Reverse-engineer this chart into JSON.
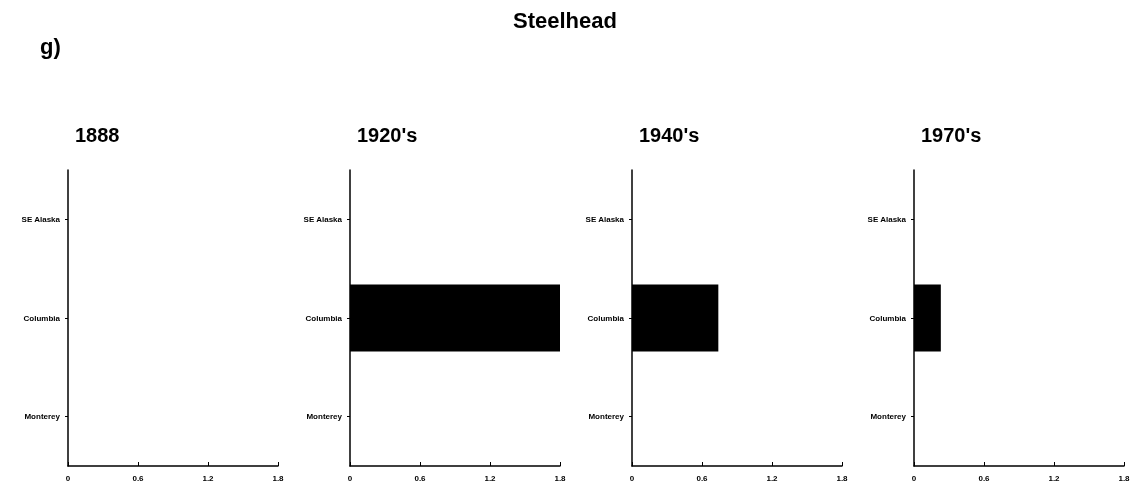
{
  "chart_data": [
    {
      "type": "bar",
      "orientation": "horizontal",
      "title": "1888",
      "annotations": [
        "g)",
        "Steelhead"
      ],
      "categories": [
        "SE Alaska",
        "Columbia",
        "Monterey"
      ],
      "values": [
        0,
        0,
        0
      ],
      "color": "#000000",
      "xlim": [
        0,
        1.8
      ],
      "xticks": [
        0,
        0.6,
        1.2,
        1.8
      ],
      "grid": false
    },
    {
      "type": "bar",
      "orientation": "horizontal",
      "title": "1920's",
      "categories": [
        "SE Alaska",
        "Columbia",
        "Monterey"
      ],
      "values": [
        null,
        1.8,
        0
      ],
      "color": "#000000",
      "xlim": [
        0,
        1.8
      ],
      "xticks": [
        0,
        0.6,
        1.2,
        1.8
      ],
      "grid": false
    },
    {
      "type": "bar",
      "orientation": "horizontal",
      "title": "1940's",
      "categories": [
        "SE Alaska",
        "Columbia",
        "Monterey"
      ],
      "values": [
        0,
        0.74,
        0
      ],
      "color": "#000000",
      "xlim": [
        0,
        1.8
      ],
      "xticks": [
        0,
        0.6,
        1.2,
        1.8
      ],
      "grid": false
    },
    {
      "type": "bar",
      "orientation": "horizontal",
      "title": "1970's",
      "categories": [
        "SE Alaska",
        "Columbia",
        "Monterey"
      ],
      "values": [
        null,
        0.23,
        0
      ],
      "color": "#000000",
      "xlim": [
        0,
        1.8
      ],
      "xticks": [
        0,
        0.6,
        1.2,
        1.8
      ],
      "grid": false
    }
  ]
}
